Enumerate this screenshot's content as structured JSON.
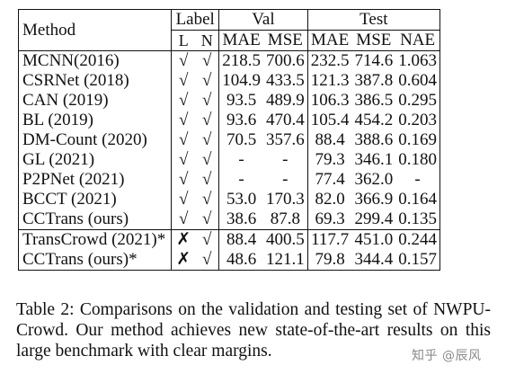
{
  "table": {
    "headers": {
      "method": "Method",
      "label": "Label",
      "val": "Val",
      "test": "Test",
      "label_l": "L",
      "label_n": "N",
      "val_mae": "MAE",
      "val_mse": "MSE",
      "test_mae": "MAE",
      "test_mse": "MSE",
      "test_nae": "NAE"
    },
    "rows": [
      {
        "method": "MCNN(2016)",
        "l": "√",
        "n": "√",
        "val_mae": "218.5",
        "val_mse": "700.6",
        "test_mae": "232.5",
        "test_mse": "714.6",
        "test_nae": "1.063"
      },
      {
        "method": "CSRNet (2018)",
        "l": "√",
        "n": "√",
        "val_mae": "104.9",
        "val_mse": "433.5",
        "test_mae": "121.3",
        "test_mse": "387.8",
        "test_nae": "0.604"
      },
      {
        "method": "CAN (2019)",
        "l": "√",
        "n": "√",
        "val_mae": "93.5",
        "val_mse": "489.9",
        "test_mae": "106.3",
        "test_mse": "386.5",
        "test_nae": "0.295"
      },
      {
        "method": "BL (2019)",
        "l": "√",
        "n": "√",
        "val_mae": "93.6",
        "val_mse": "470.4",
        "test_mae": "105.4",
        "test_mse": "454.2",
        "test_nae": "0.203"
      },
      {
        "method": "DM-Count (2020)",
        "l": "√",
        "n": "√",
        "val_mae": "70.5",
        "val_mse": "357.6",
        "test_mae": "88.4",
        "test_mse": "388.6",
        "test_nae": "0.169"
      },
      {
        "method": "GL (2021)",
        "l": "√",
        "n": "√",
        "val_mae": "-",
        "val_mse": "-",
        "test_mae": "79.3",
        "test_mse": "346.1",
        "test_nae": "0.180"
      },
      {
        "method": "P2PNet (2021)",
        "l": "√",
        "n": "√",
        "val_mae": "-",
        "val_mse": "-",
        "test_mae": "77.4",
        "test_mse": "362.0",
        "test_nae": "-"
      },
      {
        "method": "BCCT (2021)",
        "l": "√",
        "n": "√",
        "val_mae": "53.0",
        "val_mse": "170.3",
        "test_mae": "82.0",
        "test_mse": "366.9",
        "test_nae": "0.164"
      },
      {
        "method": "CCTrans (ours)",
        "l": "√",
        "n": "√",
        "val_mae": "38.6",
        "val_mse": "87.8",
        "test_mae": "69.3",
        "test_mse": "299.4",
        "test_nae": "0.135"
      },
      {
        "method": "TransCrowd (2021)*",
        "l": "✗",
        "n": "√",
        "val_mae": "88.4",
        "val_mse": "400.5",
        "test_mae": "117.7",
        "test_mse": "451.0",
        "test_nae": "0.244"
      },
      {
        "method": "CCTrans (ours)*",
        "l": "✗",
        "n": "√",
        "val_mae": "48.6",
        "val_mse": "121.1",
        "test_mae": "79.8",
        "test_mse": "344.4",
        "test_nae": "0.157"
      }
    ]
  },
  "caption": "Table 2: Comparisons on the validation and testing set of NWPU-Crowd. Our method achieves new state-of-the-art results on this large benchmark with clear margins.",
  "watermark": "知乎 @辰风"
}
